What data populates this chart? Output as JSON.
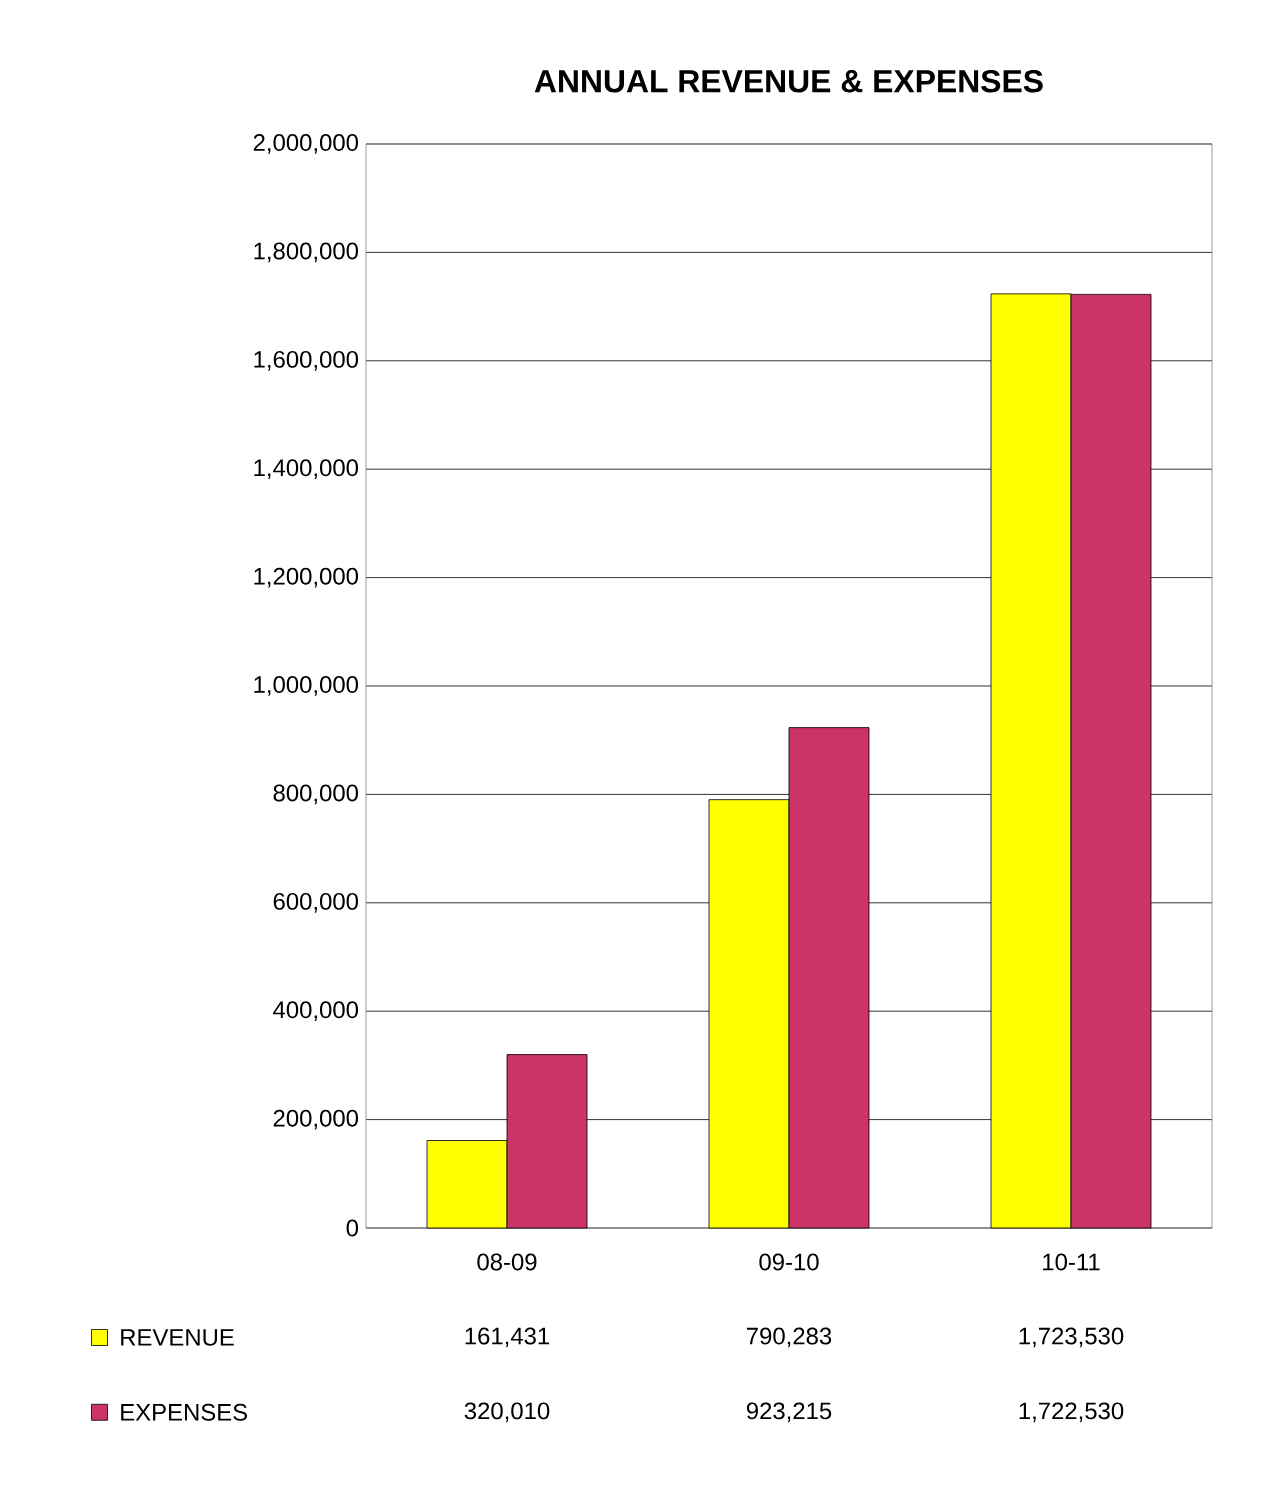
{
  "chart_data": {
    "type": "bar",
    "title": "ANNUAL REVENUE & EXPENSES",
    "categories": [
      "08-09",
      "09-10",
      "10-11"
    ],
    "series": [
      {
        "name": "REVENUE",
        "color": "#ffff00",
        "values": [
          161431,
          790283,
          1723530
        ],
        "value_labels": [
          "161,431",
          "790,283",
          "1,723,530"
        ]
      },
      {
        "name": "EXPENSES",
        "color": "#cc3366",
        "values": [
          320010,
          923215,
          1722530
        ],
        "value_labels": [
          "320,010",
          "923,215",
          "1,722,530"
        ]
      }
    ],
    "ylim": [
      0,
      2000000
    ],
    "yticks": [
      {
        "value": 0,
        "label": "0"
      },
      {
        "value": 200000,
        "label": "200,000"
      },
      {
        "value": 400000,
        "label": "400,000"
      },
      {
        "value": 600000,
        "label": "600,000"
      },
      {
        "value": 800000,
        "label": "800,000"
      },
      {
        "value": 1000000,
        "label": "1,000,000"
      },
      {
        "value": 1200000,
        "label": "1,200,000"
      },
      {
        "value": 1400000,
        "label": "1,400,000"
      },
      {
        "value": 1600000,
        "label": "1,600,000"
      },
      {
        "value": 1800000,
        "label": "1,800,000"
      },
      {
        "value": 2000000,
        "label": "2,000,000"
      }
    ],
    "grid": "y",
    "legend": "bottom left"
  }
}
